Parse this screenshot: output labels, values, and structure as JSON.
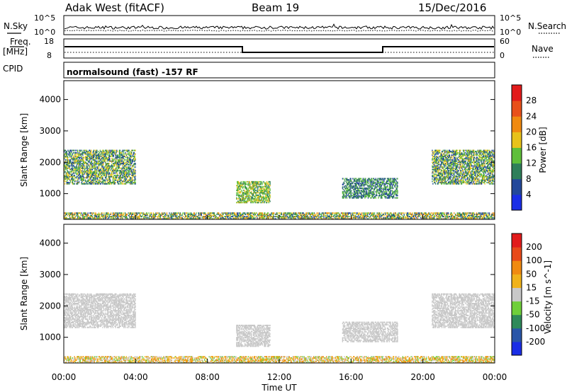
{
  "header": {
    "station": "Adak West (fitACF)",
    "beam": "Beam 19",
    "date": "15/Dec/2016"
  },
  "strip_labels": {
    "nsky": "N.Sky",
    "nsearch": "N.Search",
    "freq": "Freq.",
    "freq_unit": "[MHz]",
    "nave": "Nave",
    "cpid": "CPID",
    "cpid_value": "normalsound (fast) -157 RF"
  },
  "strip_ticks": {
    "noise_top": "10^5",
    "noise_bottom": "10^0",
    "freq_top": "18",
    "freq_bottom": "8",
    "nave_top": "60",
    "nave_bottom": "0"
  },
  "axes": {
    "ylabel": "Slant Range [km]",
    "xlabel": "Time UT",
    "y_ticks": [
      "1000",
      "2000",
      "3000",
      "4000"
    ],
    "x_ticks": [
      "00:00",
      "04:00",
      "08:00",
      "12:00",
      "16:00",
      "20:00",
      "00:00"
    ]
  },
  "power_scale": {
    "label": "Power [dB]",
    "ticks": [
      "4",
      "8",
      "12",
      "16",
      "20",
      "24",
      "28"
    ],
    "colors": [
      "#1a2ee6",
      "#23489a",
      "#2f7f5a",
      "#5fbf3a",
      "#e8c21a",
      "#f08a10",
      "#e8501a",
      "#e21b1b"
    ]
  },
  "velocity_scale": {
    "label": "Velocity [m s^-1]",
    "ticks": [
      "200",
      "100",
      "50",
      "15",
      "-15",
      "-50",
      "-100",
      "-200"
    ],
    "colors": [
      "#1a2ee6",
      "#2a56a8",
      "#2f8a5a",
      "#6fcf3a",
      "#c8c8c8",
      "#f0b21a",
      "#f08a10",
      "#e84a1a",
      "#e21b1b"
    ]
  },
  "chart_data": [
    {
      "type": "heatmap",
      "title": "Power",
      "xlabel": "Time UT",
      "ylabel": "Slant Range [km]",
      "xlim": [
        0,
        24
      ],
      "ylim": [
        180,
        4600
      ],
      "colorbar": {
        "label": "Power [dB]",
        "range": [
          0,
          32
        ]
      },
      "regions": [
        {
          "t": [
            0.0,
            4.0
          ],
          "range_km": [
            1300,
            2400
          ],
          "power_db": [
            4,
            20
          ]
        },
        {
          "t": [
            9.6,
            11.5
          ],
          "range_km": [
            700,
            1400
          ],
          "power_db": [
            8,
            20
          ]
        },
        {
          "t": [
            15.5,
            18.6
          ],
          "range_km": [
            850,
            1500
          ],
          "power_db": [
            4,
            16
          ]
        },
        {
          "t": [
            20.5,
            24.0
          ],
          "range_km": [
            1300,
            2400
          ],
          "power_db": [
            4,
            20
          ]
        },
        {
          "t": [
            0.0,
            24.0
          ],
          "range_km": [
            180,
            400
          ],
          "power_db": [
            4,
            24
          ]
        }
      ]
    },
    {
      "type": "heatmap",
      "title": "Velocity",
      "xlabel": "Time UT",
      "ylabel": "Slant Range [km]",
      "xlim": [
        0,
        24
      ],
      "ylim": [
        180,
        4600
      ],
      "colorbar": {
        "label": "Velocity [m s^-1]",
        "range": [
          -200,
          200
        ]
      },
      "regions": [
        {
          "t": [
            0.0,
            4.0
          ],
          "range_km": [
            1300,
            2400
          ],
          "velocity": [
            -15,
            15
          ]
        },
        {
          "t": [
            9.6,
            11.5
          ],
          "range_km": [
            700,
            1400
          ],
          "velocity": [
            -15,
            15
          ]
        },
        {
          "t": [
            15.5,
            18.6
          ],
          "range_km": [
            850,
            1500
          ],
          "velocity": [
            -15,
            15
          ]
        },
        {
          "t": [
            20.5,
            24.0
          ],
          "range_km": [
            1300,
            2400
          ],
          "velocity": [
            -15,
            15
          ]
        },
        {
          "t": [
            0.0,
            24.0
          ],
          "range_km": [
            180,
            400
          ],
          "velocity": [
            -100,
            50
          ]
        }
      ]
    }
  ]
}
